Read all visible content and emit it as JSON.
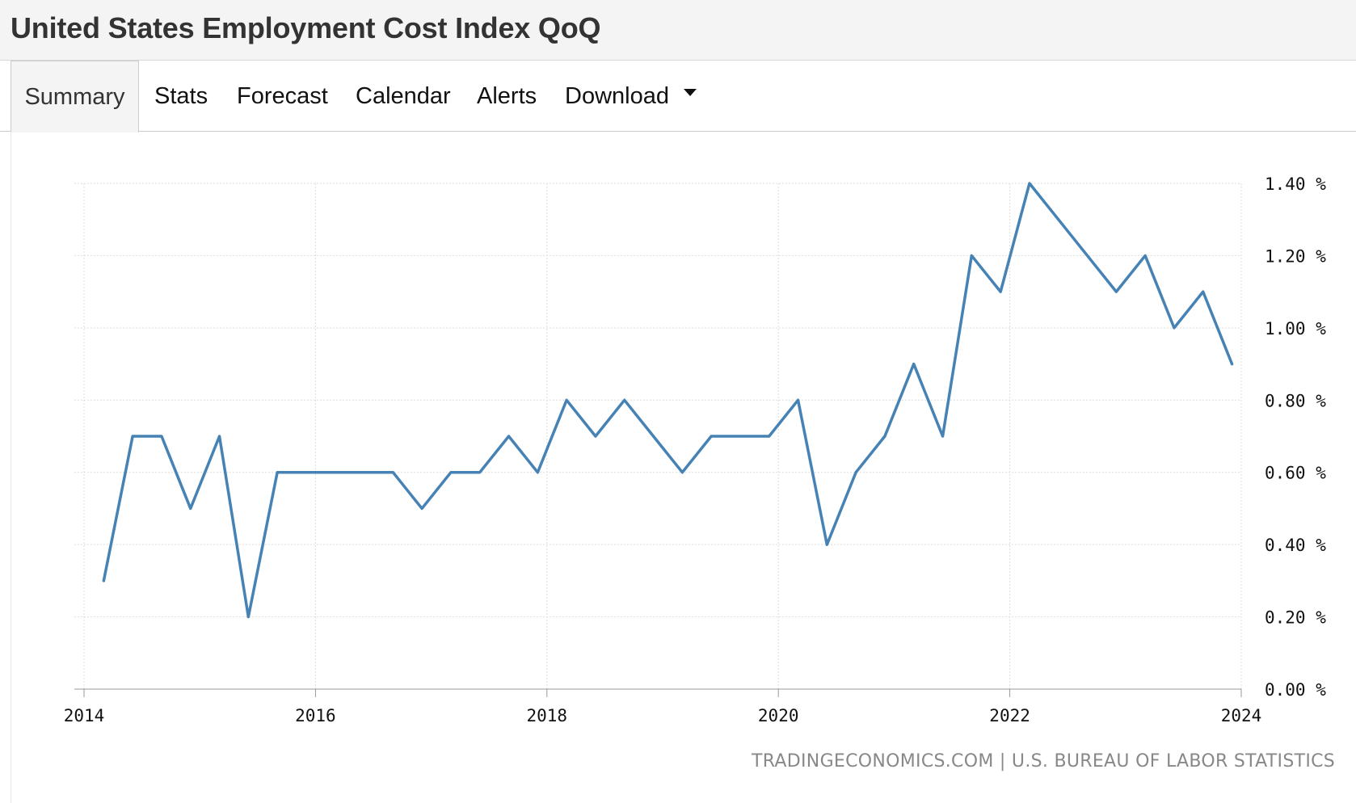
{
  "header": {
    "title": "United States Employment Cost Index QoQ"
  },
  "tabs": [
    {
      "label": "Summary",
      "active": true
    },
    {
      "label": "Stats",
      "active": false
    },
    {
      "label": "Forecast",
      "active": false
    },
    {
      "label": "Calendar",
      "active": false
    },
    {
      "label": "Alerts",
      "active": false
    },
    {
      "label": "Download",
      "active": false,
      "has_caret": true
    }
  ],
  "source": "TRADINGECONOMICS.COM | U.S. BUREAU OF LABOR STATISTICS",
  "colors": {
    "line": "#4682b4",
    "grid": "#dddddd",
    "header_bg": "#f4f4f4"
  },
  "chart_data": {
    "type": "line",
    "title": "",
    "xlabel": "",
    "ylabel": "",
    "x_ticks": [
      "2014",
      "2016",
      "2018",
      "2020",
      "2022",
      "2024"
    ],
    "y_ticks": [
      "0.00 %",
      "0.20 %",
      "0.40 %",
      "0.60 %",
      "0.80 %",
      "1.00 %",
      "1.20 %",
      "1.40 %"
    ],
    "ylim": [
      0,
      1.4
    ],
    "xlim": [
      2014.0,
      2024.0
    ],
    "y_axis_position": "right",
    "grid": true,
    "series": [
      {
        "x": [
          2014.17,
          2014.42,
          2014.67,
          2014.92,
          2015.17,
          2015.42,
          2015.67,
          2015.92,
          2016.17,
          2016.42,
          2016.67,
          2016.92,
          2017.17,
          2017.42,
          2017.67,
          2017.92,
          2018.17,
          2018.42,
          2018.67,
          2018.92,
          2019.17,
          2019.42,
          2019.67,
          2019.92,
          2020.17,
          2020.42,
          2020.67,
          2020.92,
          2021.17,
          2021.42,
          2021.67,
          2021.92,
          2022.17,
          2022.42,
          2022.67,
          2022.92,
          2023.17,
          2023.42,
          2023.67,
          2023.92
        ],
        "values": [
          0.3,
          0.7,
          0.7,
          0.5,
          0.7,
          0.2,
          0.6,
          0.6,
          0.6,
          0.6,
          0.6,
          0.5,
          0.6,
          0.6,
          0.7,
          0.6,
          0.8,
          0.7,
          0.8,
          0.7,
          0.6,
          0.7,
          0.7,
          0.7,
          0.8,
          0.4,
          0.6,
          0.7,
          0.9,
          0.7,
          1.2,
          1.1,
          1.4,
          1.3,
          1.2,
          1.1,
          1.2,
          1.0,
          1.1,
          0.9
        ]
      }
    ]
  }
}
